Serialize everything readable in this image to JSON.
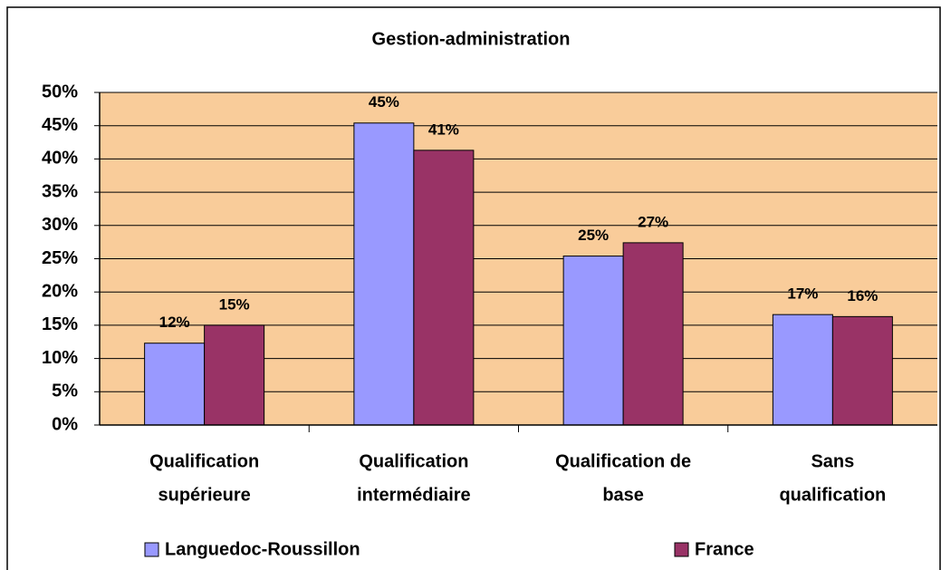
{
  "chart_data": {
    "type": "bar",
    "title": "Gestion-administration",
    "categories": [
      [
        "Qualification",
        "supérieure"
      ],
      [
        "Qualification",
        "intermédiaire"
      ],
      [
        "Qualification de",
        "base"
      ],
      [
        "Sans",
        "qualification"
      ]
    ],
    "series": [
      {
        "name": "Languedoc-Roussillon",
        "color": "#9999ff",
        "values": [
          12.3,
          45.4,
          25.4,
          16.6
        ],
        "value_labels": [
          "12%",
          "45%",
          "25%",
          "17%"
        ]
      },
      {
        "name": "France",
        "color": "#993366",
        "values": [
          15.0,
          41.3,
          27.4,
          16.3
        ],
        "value_labels": [
          "15%",
          "41%",
          "27%",
          "16%"
        ]
      }
    ],
    "ylim": [
      0,
      50
    ],
    "yticks": [
      {
        "value": 0,
        "label": "0%"
      },
      {
        "value": 5,
        "label": "5%"
      },
      {
        "value": 10,
        "label": "10%"
      },
      {
        "value": 15,
        "label": "15%"
      },
      {
        "value": 20,
        "label": "20%"
      },
      {
        "value": 25,
        "label": "25%"
      },
      {
        "value": 30,
        "label": "30%"
      },
      {
        "value": 35,
        "label": "35%"
      },
      {
        "value": 40,
        "label": "40%"
      },
      {
        "value": 45,
        "label": "45%"
      },
      {
        "value": 50,
        "label": "50%"
      }
    ],
    "grid": true,
    "plot_background": "#f9cc9a",
    "legend": "bottom"
  }
}
